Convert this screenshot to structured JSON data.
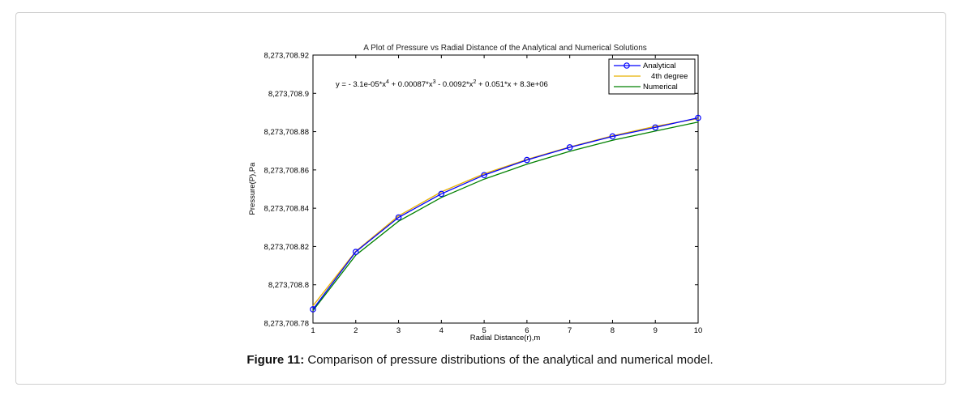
{
  "figure": {
    "label": "Figure 11:",
    "caption": "Comparison of pressure distributions of the analytical and numerical model."
  },
  "chart_data": {
    "type": "line",
    "title": "A Plot of Pressure vs Radial Distance of the Analytical and Numerical Solutions",
    "xlabel": "Radial Distance(r),m",
    "ylabel": "Pressure(P),Pa",
    "xlim": [
      1,
      10
    ],
    "ylim": [
      8273708.78,
      8273708.92
    ],
    "xticks": [
      1,
      2,
      3,
      4,
      5,
      6,
      7,
      8,
      9,
      10
    ],
    "yticks": [
      8273708.78,
      8273708.8,
      8273708.82,
      8273708.84,
      8273708.86,
      8273708.88,
      8273708.9,
      8273708.92
    ],
    "ytick_labels": [
      "8,273,708.78",
      "8,273,708.8",
      "8,273,708.82",
      "8,273,708.84",
      "8,273,708.86",
      "8,273,708.88",
      "8,273,708.9",
      "8,273,708.92"
    ],
    "grid": false,
    "legend_position": "top-right",
    "annotation": {
      "prefix": "y = - 3.1e-05*x",
      "p1": "4",
      "mid1": " + 0.00087*x",
      "p2": "3",
      "mid2": " - 0.0092*x",
      "p3": "2",
      "suffix": " + 0.051*x + 8.3e+06"
    },
    "x": [
      1,
      2,
      3,
      4,
      5,
      6,
      7,
      8,
      9,
      10
    ],
    "series": [
      {
        "name": "Analytical",
        "color": "#0000ff",
        "marker": "circle",
        "values": [
          8273708.7872,
          8273708.8172,
          8273708.8352,
          8273708.8475,
          8273708.8573,
          8273708.8652,
          8273708.8718,
          8273708.8775,
          8273708.8822,
          8273708.8872
        ]
      },
      {
        "name": "4th degree",
        "color": "#e8b000",
        "marker": "none",
        "values": [
          8273708.789,
          8273708.8175,
          8273708.836,
          8273708.8485,
          8273708.858,
          8273708.8655,
          8273708.872,
          8273708.8778,
          8273708.8828,
          8273708.8868
        ]
      },
      {
        "name": "Numerical",
        "color": "#008000",
        "marker": "none",
        "values": [
          8273708.7865,
          8273708.8155,
          8273708.8332,
          8273708.8456,
          8273708.8552,
          8273708.863,
          8273708.8697,
          8273708.8755,
          8273708.8803,
          8273708.885
        ]
      }
    ]
  }
}
